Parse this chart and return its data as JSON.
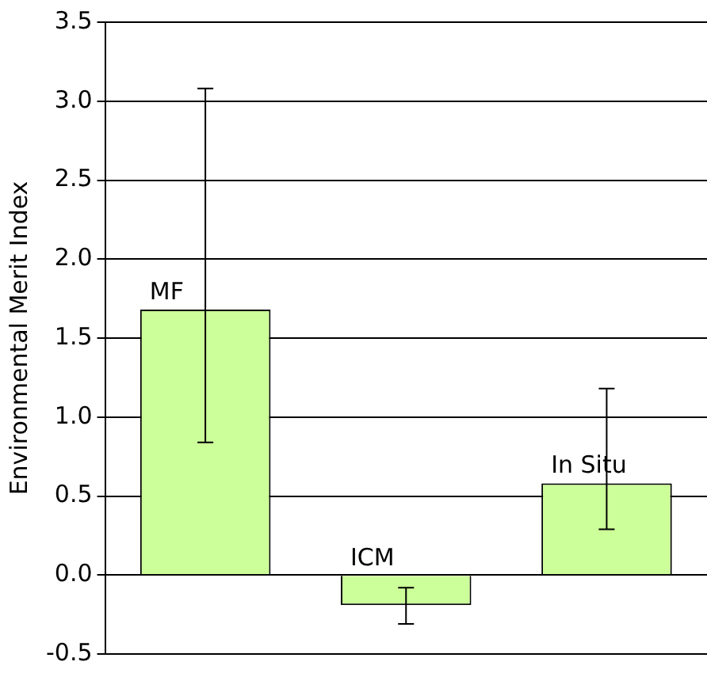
{
  "chart_data": {
    "type": "bar",
    "ylabel": "Environmental Merit Index",
    "categories": [
      "MF",
      "ICM",
      "In Situ"
    ],
    "values": [
      1.68,
      -0.19,
      0.58
    ],
    "errors": [
      [
        0.84,
        3.08
      ],
      [
        -0.31,
        -0.08
      ],
      [
        0.29,
        1.18
      ]
    ],
    "color": "#ccff99",
    "ylim": [
      -0.5,
      3.5
    ],
    "yticks": [
      -0.5,
      {
        "value": 0,
        "label": "0.0"
      },
      0.5,
      {
        "value": 1,
        "label": "1.0"
      },
      1.5,
      {
        "value": 2,
        "label": "2.0"
      },
      2.5,
      {
        "value": 3,
        "label": "3.0"
      },
      3.5
    ],
    "grid": "y",
    "tick_labels": "y",
    "legend": false
  }
}
